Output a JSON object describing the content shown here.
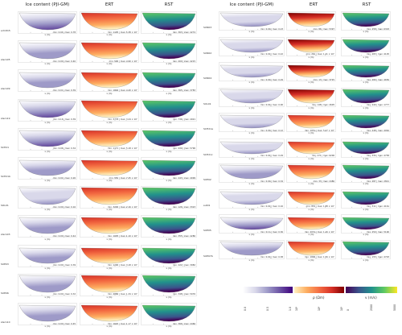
{
  "colors": {
    "ice": [
      "#ffffff",
      "#d9d8ea",
      "#9e9ac8",
      "#6a51a3",
      "#3f007d"
    ],
    "ert": [
      "#fff0c0",
      "#fdae61",
      "#f46d43",
      "#d73027",
      "#7f0000"
    ],
    "rst": [
      "#440154",
      "#3b528b",
      "#21918c",
      "#5ec962",
      "#fde725"
    ]
  },
  "left": {
    "headers": [
      "Ice content (PJI-GM)",
      "ERT",
      "RST"
    ],
    "rows": [
      {
        "site": "schilt15",
        "ice": "min: 0.04 | max: 0.78",
        "ert": "min: 1195 | max: 5.38 × 10⁴",
        "rst": "min: 363 | max: 4274",
        "fill": [
          0.25,
          0.55,
          0.6
        ]
      },
      {
        "site": "stern05",
        "ice": "min: 0.00 | max: 0.40",
        "ert": "min: 590 | max: 4.90 × 10⁴",
        "rst": "min: 400 | max: 4215",
        "fill": [
          0.2,
          0.5,
          0.55
        ]
      },
      {
        "site": "stern09",
        "ice": "min: 0.01 | max: 0.39",
        "ert": "min: 1846 | max: 4.40 × 10⁴",
        "rst": "min: 365 | max: 3783",
        "fill": [
          0.2,
          0.45,
          0.5
        ]
      },
      {
        "site": "stern19",
        "ice": "min: 0.16 | max: 0.39",
        "ert": "min: 5778 | max: 3.24 × 10⁴",
        "rst": "min: 736 | max: 4921",
        "fill": [
          0.35,
          0.5,
          0.55
        ]
      },
      {
        "site": "SCH21",
        "ice": "min: 0.06 | max: 0.34",
        "ert": "min: 1171 | max: 5.18 × 10⁴",
        "rst": "min: 939 | max: 5796",
        "fill": [
          0.25,
          0.5,
          0.6
        ]
      },
      {
        "site": "SCH21b",
        "ice": "min: 0.02 | max: 0.26",
        "ert": "min: 550 | max: 7.45 × 10⁴",
        "rst": "min: 243 | max: 4099",
        "fill": [
          0.18,
          0.6,
          0.5
        ]
      },
      {
        "site": "SOL01",
        "ice": "min: 0.00 | max: 0.16",
        "ert": "min: 3200 | max: 2.16 × 10⁴",
        "rst": "min: 126 | max: 3323",
        "fill": [
          0.1,
          0.35,
          0.45
        ]
      },
      {
        "site": "stern03",
        "ice": "min: 0.00 | max: 0.44",
        "ert": "min: 1095 | max: 1.10 × 10⁵",
        "rst": "min: 355 | max: 4280",
        "fill": [
          0.22,
          0.7,
          0.55
        ]
      },
      {
        "site": "SUE03",
        "ice": "min: 0.00 | max: 0.39",
        "ert": "min: 1290 | max: 3.18 × 10⁴",
        "rst": "min: 222 | max: 3982",
        "fill": [
          0.2,
          0.45,
          0.5
        ]
      },
      {
        "site": "SUE06",
        "ice": "min: 0.00 | max: 0.32",
        "ert": "min: 4886 | max: 1.34 × 10⁴",
        "rst": "min: 348 | max: 5076",
        "fill": [
          0.18,
          0.3,
          0.55
        ]
      },
      {
        "site": "stern10",
        "ice": "min: 0.00 | max: 0.45",
        "ert": "min: 1620 | max: 1.17 × 10⁴",
        "rst": "min: 366 | max: 4466",
        "fill": [
          0.23,
          0.3,
          0.5
        ]
      }
    ]
  },
  "right": {
    "headers": [
      "Ice content (PJI-GM)",
      "ERT",
      "RST"
    ],
    "rows": [
      {
        "site": "SUN03",
        "ice": "min: 0.00 | max: 0.23",
        "ert": "min: 86 | max: 5397",
        "rst": "min: 258 | max: 6303",
        "fill": [
          0.12,
          0.85,
          0.6
        ]
      },
      {
        "site": "SUN02",
        "ice": "min: 0.00 | max: 0.22",
        "ert": "min: 262 | max: 1.41 × 10⁴",
        "rst": "min: 283 | max: 4105",
        "fill": [
          0.12,
          0.75,
          0.5
        ]
      },
      {
        "site": "SUN04",
        "ice": "min: 0.00 | max: 0.29",
        "ert": "min: 13 | max: 3725",
        "rst": "min: 280 | max: 4656",
        "fill": [
          0.15,
          0.9,
          0.55
        ]
      },
      {
        "site": "SUL01",
        "ice": "min: 0.00 | max: 0.00",
        "ert": "min: 148 | max: 2605",
        "rst": "min: 240 | max: 1777",
        "fill": [
          0.02,
          0.85,
          0.35
        ]
      },
      {
        "site": "SCH21a",
        "ice": "min: 0.00 | max: 0.12",
        "ert": "min: 1051 | max: 5.27 × 10⁴",
        "rst": "min: 248 | max: 4062",
        "fill": [
          0.08,
          0.55,
          0.5
        ]
      },
      {
        "site": "SCH21c",
        "ice": "min: 0.00 | max: 0.29",
        "ert": "min: 271 | max: 6206",
        "rst": "min: 334 | max: 4758",
        "fill": [
          0.15,
          0.7,
          0.55
        ]
      },
      {
        "site": "SUE02",
        "ice": "min: 0.00 | max: 0.34",
        "ert": "min: 33 | max: 2486",
        "rst": "min: 287 | max: 2821",
        "fill": [
          0.18,
          0.5,
          0.4
        ]
      },
      {
        "site": "sut01",
        "ice": "min: 0.00 | max: 0.16",
        "ert": "min: 853 | max: 1.88 × 10⁴",
        "rst": "min: 311 | max: 4161",
        "fill": [
          0.1,
          0.45,
          0.5
        ]
      },
      {
        "site": "SUE05",
        "ice": "min: 0.11 | max: 0.36",
        "ert": "min: 2031 | max: 1.16 × 10⁴",
        "rst": "min: 250 | max: 5190",
        "fill": [
          0.25,
          0.3,
          0.55
        ]
      },
      {
        "site": "SUE07b",
        "ice": "min: 0.00 | max: 0.38",
        "ert": "min: 1806 | max: 1.56 × 10⁴",
        "rst": "min: 155 | max: 4793",
        "fill": [
          0.2,
          0.35,
          0.5
        ]
      }
    ]
  },
  "colorbars": [
    {
      "label": "",
      "ticks": [
        "0.0",
        "0.5",
        "1.0"
      ]
    },
    {
      "label": "ρ (Ωm)",
      "ticks": [
        "10¹",
        "10³",
        "10⁵"
      ]
    },
    {
      "label": "v (m/s)",
      "ticks": [
        "0",
        "2500",
        "5000"
      ]
    }
  ],
  "x_axis_label": "x (m)"
}
